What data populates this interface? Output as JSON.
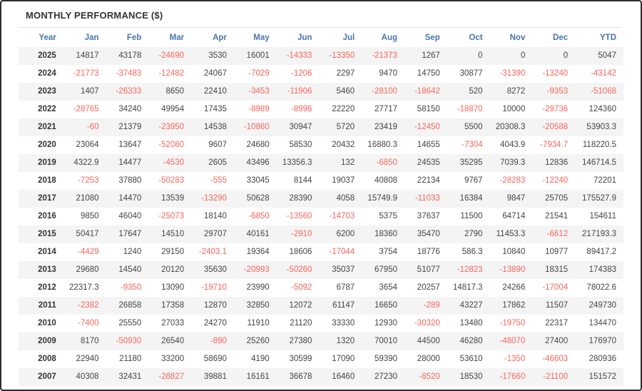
{
  "title": "MONTHLY PERFORMANCE ($)",
  "colors": {
    "header_text": "#4a74ad",
    "negative": "#fa655c",
    "positive": "#444444",
    "year": "#333333",
    "title": "#333333",
    "row_alt": "#f4f4f4",
    "frame_border": "#2d2d2d"
  },
  "table": {
    "columns": [
      "Year",
      "Jan",
      "Feb",
      "Mar",
      "Apr",
      "May",
      "Jun",
      "Jul",
      "Aug",
      "Sep",
      "Oct",
      "Nov",
      "Dec",
      "YTD"
    ],
    "rows": [
      {
        "year": "2025",
        "values": [
          "14817",
          "43178",
          "-24690",
          "3530",
          "16001",
          "-14333",
          "-13350",
          "-21373",
          "1267",
          "0",
          "0",
          "0",
          "5047"
        ]
      },
      {
        "year": "2024",
        "values": [
          "-21773",
          "-37483",
          "-12482",
          "24067",
          "-7029",
          "-1206",
          "2297",
          "9470",
          "14750",
          "30877",
          "-31390",
          "-13240",
          "-43142"
        ]
      },
      {
        "year": "2023",
        "values": [
          "1407",
          "-26333",
          "8650",
          "22410",
          "-3453",
          "-11906",
          "5460",
          "-28100",
          "-18642",
          "520",
          "8272",
          "-9353",
          "-51068"
        ]
      },
      {
        "year": "2022",
        "values": [
          "-28765",
          "34240",
          "49954",
          "17435",
          "-8989",
          "-8996",
          "22220",
          "27717",
          "58150",
          "-18870",
          "10000",
          "-29736",
          "124360"
        ]
      },
      {
        "year": "2021",
        "values": [
          "-60",
          "21379",
          "-23950",
          "14538",
          "-10860",
          "30947",
          "5720",
          "23419",
          "-12450",
          "5500",
          "20308.3",
          "-20588",
          "53903.3"
        ]
      },
      {
        "year": "2020",
        "values": [
          "23064",
          "13647",
          "-52080",
          "9607",
          "24680",
          "58530",
          "20432",
          "16880.3",
          "14655",
          "-7304",
          "4043.9",
          "-7934.7",
          "118220.5"
        ]
      },
      {
        "year": "2019",
        "values": [
          "4322.9",
          "14477",
          "-4530",
          "2605",
          "43496",
          "13356.3",
          "132",
          "-6850",
          "24535",
          "35295",
          "7039.3",
          "12836",
          "146714.5"
        ]
      },
      {
        "year": "2018",
        "values": [
          "-7253",
          "37880",
          "-50283",
          "-555",
          "33045",
          "8144",
          "19037",
          "40808",
          "22134",
          "9767",
          "-28283",
          "-12240",
          "72201"
        ]
      },
      {
        "year": "2017",
        "values": [
          "21080",
          "14470",
          "13539",
          "-13290",
          "50628",
          "28390",
          "4058",
          "15749.9",
          "-11033",
          "16384",
          "9847",
          "25705",
          "175527.9"
        ]
      },
      {
        "year": "2016",
        "values": [
          "9850",
          "46040",
          "-25073",
          "18140",
          "-6850",
          "-13560",
          "-14703",
          "5375",
          "37637",
          "11500",
          "64714",
          "21541",
          "154611"
        ]
      },
      {
        "year": "2015",
        "values": [
          "50417",
          "17647",
          "14510",
          "29707",
          "40161",
          "-2910",
          "6200",
          "18360",
          "35470",
          "2790",
          "11453.3",
          "-6612",
          "217193.3"
        ]
      },
      {
        "year": "2014",
        "values": [
          "-4429",
          "1240",
          "29150",
          "-2403.1",
          "19364",
          "18606",
          "-17044",
          "3754",
          "18776",
          "586.3",
          "10840",
          "10977",
          "89417.2"
        ]
      },
      {
        "year": "2013",
        "values": [
          "29680",
          "14540",
          "20120",
          "35630",
          "-20993",
          "-50260",
          "35037",
          "67950",
          "51077",
          "-12823",
          "-13890",
          "18315",
          "174383"
        ]
      },
      {
        "year": "2012",
        "values": [
          "22317.3",
          "-9350",
          "13090",
          "-19710",
          "23990",
          "-5092",
          "6787",
          "3654",
          "20257",
          "14817.3",
          "24266",
          "-17004",
          "78022.6"
        ]
      },
      {
        "year": "2011",
        "values": [
          "-2382",
          "26858",
          "17358",
          "12870",
          "32850",
          "12072",
          "61147",
          "16650",
          "-289",
          "43227",
          "17862",
          "11507",
          "249730"
        ]
      },
      {
        "year": "2010",
        "values": [
          "-7400",
          "25550",
          "27033",
          "24270",
          "11910",
          "21120",
          "33330",
          "12930",
          "-30320",
          "13480",
          "-19750",
          "22317",
          "134470"
        ]
      },
      {
        "year": "2009",
        "values": [
          "8170",
          "-50930",
          "26540",
          "-890",
          "25260",
          "27380",
          "1320",
          "70010",
          "44500",
          "46280",
          "-48070",
          "27400",
          "176970"
        ]
      },
      {
        "year": "2008",
        "values": [
          "22940",
          "21180",
          "33200",
          "58690",
          "4190",
          "30599",
          "17090",
          "59390",
          "28000",
          "53610",
          "-1350",
          "-46603",
          "280936"
        ]
      },
      {
        "year": "2007",
        "values": [
          "40308",
          "32431",
          "-28827",
          "39881",
          "16161",
          "36678",
          "16460",
          "27230",
          "-8520",
          "18530",
          "-17660",
          "-21100",
          "151572"
        ]
      }
    ]
  }
}
